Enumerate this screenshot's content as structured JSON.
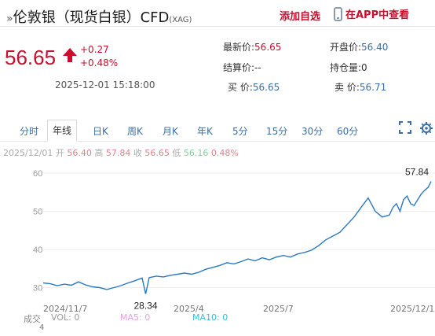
{
  "header": {
    "prefix": "»",
    "title": "伦敦银（现货白银）CFD",
    "code": "(XAG)",
    "add_favorite": "添加自选",
    "app_view": "在APP中查看"
  },
  "quote": {
    "price": "56.65",
    "change": "+0.27",
    "change_pct": "+0.48%",
    "datetime": "2025-12-01 15:18:00",
    "latest_label": "最新价:",
    "latest_value": "56.65",
    "open_label": "开盘价:",
    "open_value": "56.40",
    "settle_label": "结算价:",
    "settle_value": "--",
    "position_label": "持仓量:",
    "position_value": "0",
    "buy_label": "买  价:",
    "buy_value": "56.65",
    "sell_label": "卖  价:",
    "sell_value": "56.71",
    "accent_red": "#c8102e"
  },
  "tabs": [
    {
      "label": "分时"
    },
    {
      "label": "年线"
    },
    {
      "label": "日K"
    },
    {
      "label": "周K"
    },
    {
      "label": "月K"
    },
    {
      "label": "年K"
    },
    {
      "label": "5分"
    },
    {
      "label": "15分"
    },
    {
      "label": "30分"
    },
    {
      "label": "60分"
    }
  ],
  "icons": {
    "fullscreen": "fullscreen-icon",
    "settings": "settings-icon"
  },
  "ohlc": {
    "date": "2025/12/01",
    "open_label": "开",
    "open": "56.40",
    "high_label": "高",
    "high": "57.84",
    "close_label": "收",
    "close": "56.65",
    "low_label": "低",
    "low": "56.16",
    "pct": "0.48%"
  },
  "chart_data": {
    "type": "line",
    "y_ticks": [
      "60",
      "50",
      "40",
      "30"
    ],
    "ylim": [
      27,
      60
    ],
    "x_labels": [
      "2024/11/7",
      "2025/4",
      "2025/7",
      "2025/12/1"
    ],
    "x": [
      0,
      10,
      20,
      30,
      40,
      50,
      60,
      70,
      80,
      90,
      100,
      110,
      120,
      130,
      140,
      145,
      150,
      160,
      170,
      180,
      190,
      200,
      210,
      220,
      230,
      240,
      250,
      260,
      270,
      280,
      290,
      300,
      310,
      320,
      330,
      340,
      350,
      360,
      370,
      380,
      390,
      400,
      410,
      420,
      430,
      440,
      450,
      460,
      470,
      480,
      490,
      495,
      500,
      505,
      510,
      515,
      520,
      525,
      530,
      535,
      540,
      545,
      549
    ],
    "values": [
      31.2,
      31.0,
      30.5,
      30.9,
      30.6,
      31.5,
      30.7,
      30.2,
      30.0,
      29.5,
      30.0,
      30.5,
      31.2,
      31.8,
      32.5,
      28.34,
      32.6,
      33.0,
      32.8,
      33.2,
      33.5,
      33.8,
      33.5,
      34.0,
      34.8,
      35.3,
      35.8,
      36.5,
      36.2,
      36.8,
      37.5,
      37.0,
      37.8,
      37.3,
      38.0,
      38.4,
      38.0,
      38.8,
      39.2,
      39.8,
      41.0,
      42.5,
      43.5,
      44.5,
      46.5,
      48.5,
      51.0,
      53.5,
      50.0,
      48.5,
      49.0,
      51.0,
      52.0,
      50.0,
      53.0,
      54.0,
      52.0,
      51.5,
      53.0,
      54.5,
      55.5,
      56.3,
      57.84
    ],
    "high_label": "57.84",
    "low_label": "28.34",
    "line_color": "#2a79c4"
  },
  "volume": {
    "label": "成交",
    "vol": "VOL: 0",
    "ma5": "MA5: 0",
    "ma10": "MA10: 0",
    "count": "4"
  }
}
